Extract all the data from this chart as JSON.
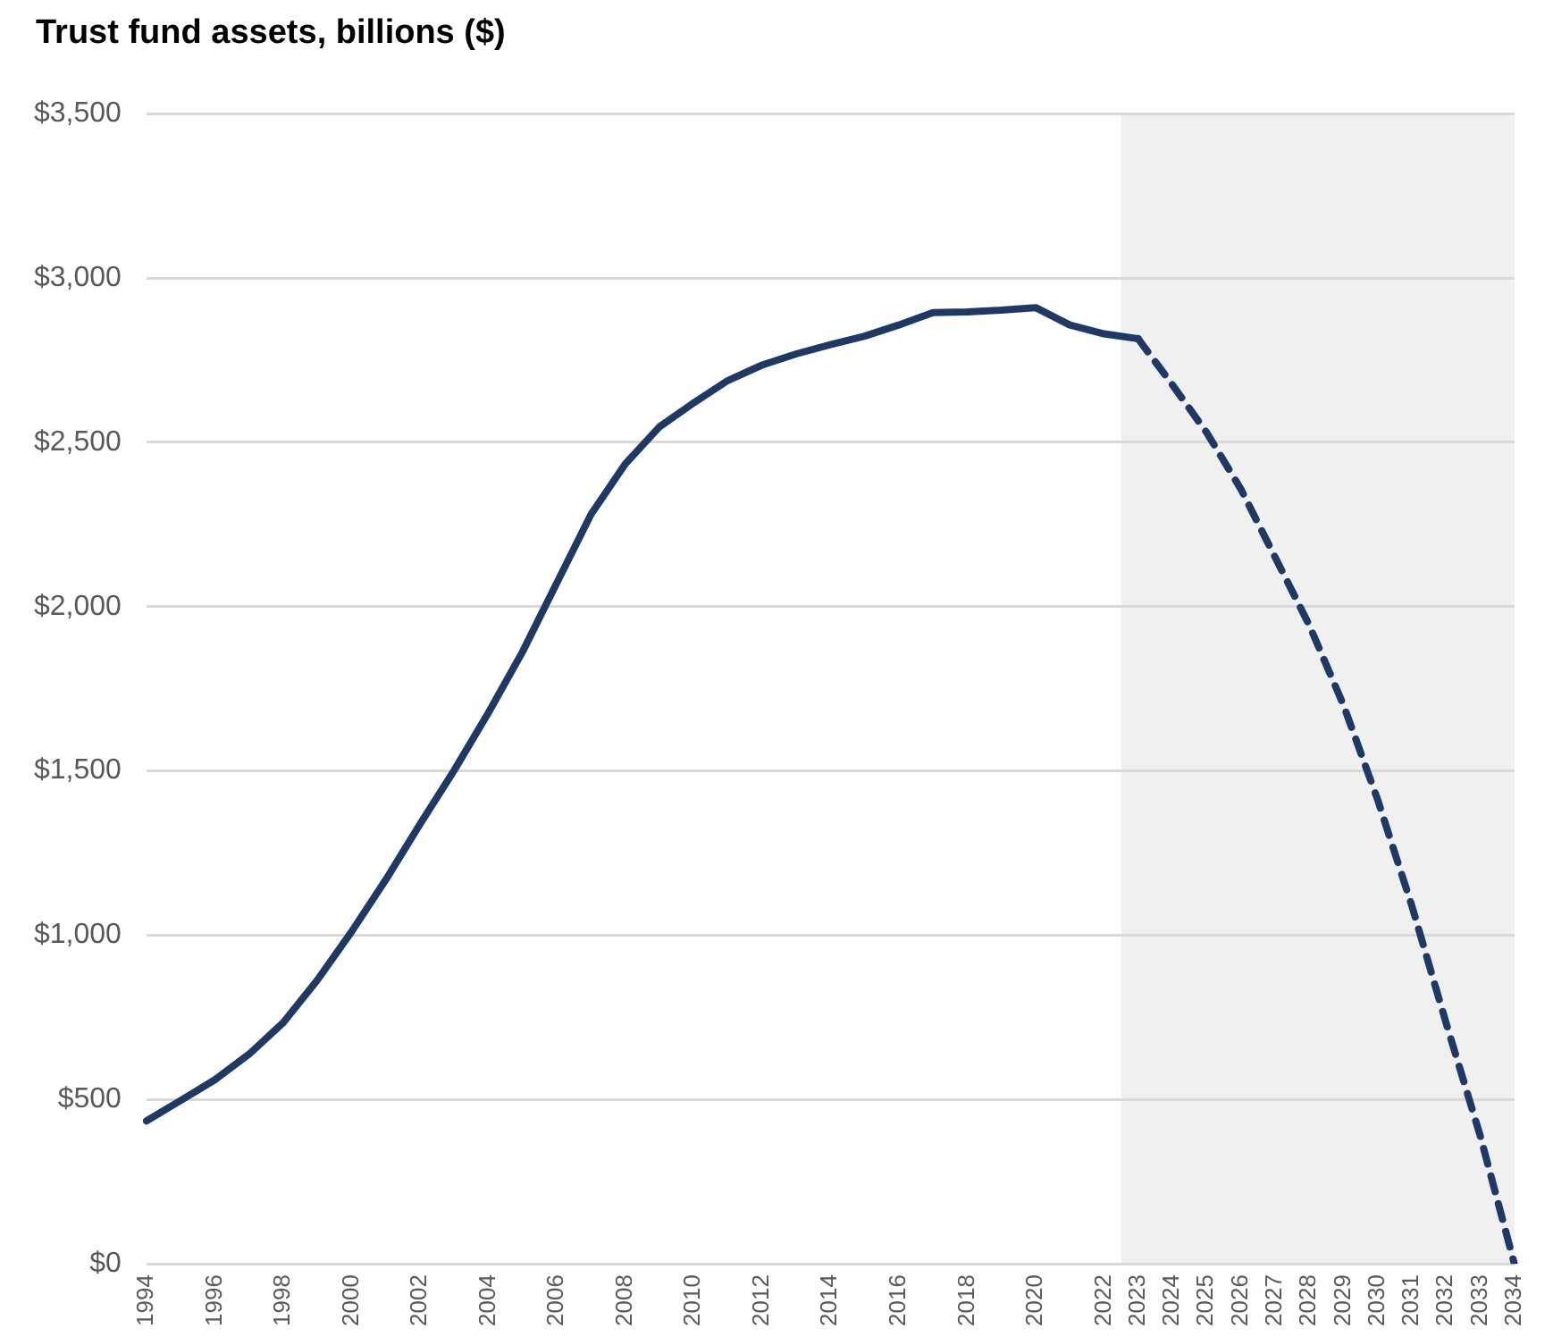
{
  "chart_data": {
    "type": "line",
    "title": "Trust fund assets, billions ($)",
    "categories": [
      "1994",
      null,
      "1996",
      null,
      "1998",
      null,
      "2000",
      null,
      "2002",
      null,
      "2004",
      null,
      "2006",
      null,
      "2008",
      null,
      "2010",
      null,
      "2012",
      null,
      "2014",
      null,
      "2016",
      null,
      "2018",
      null,
      "2020",
      null,
      "2022",
      "2023",
      "2024",
      "2025",
      "2026",
      "2027",
      "2028",
      "2029",
      "2030",
      "2031",
      "2032",
      "2033",
      "2034"
    ],
    "series": [
      {
        "color": "#203864",
        "line_style": "solid",
        "values": [
          435,
          497,
          560,
          638,
          734,
          864,
          1011,
          1169,
          1338,
          1502,
          1677,
          1863,
          2072,
          2281,
          2434,
          2547,
          2620,
          2688,
          2735,
          2769,
          2797,
          2823,
          2857,
          2895,
          2897,
          2902,
          2910,
          2857,
          2830,
          2815,
          null,
          null,
          null,
          null,
          null,
          null,
          null,
          null,
          null,
          null,
          null
        ]
      },
      {
        "color": "#203864",
        "line_style": "dashed",
        "values": [
          null,
          null,
          null,
          null,
          null,
          null,
          null,
          null,
          null,
          null,
          null,
          null,
          null,
          null,
          null,
          null,
          null,
          null,
          null,
          null,
          null,
          null,
          null,
          null,
          null,
          null,
          null,
          null,
          null,
          2815,
          2675,
          2530,
          2358,
          2151,
          1944,
          1701,
          1413,
          1090,
          734,
          390,
          0
        ]
      }
    ],
    "ylim": [
      0,
      3500
    ],
    "yticks": [
      {
        "value": 0,
        "label": "$0"
      },
      {
        "value": 500,
        "label": "$500"
      },
      {
        "value": 1000,
        "label": "$1,000"
      },
      {
        "value": 1500,
        "label": "$1,500"
      },
      {
        "value": 2000,
        "label": "$2,000"
      },
      {
        "value": 2500,
        "label": "$2,500"
      },
      {
        "value": 3000,
        "label": "$3,000"
      },
      {
        "value": 3500,
        "label": "$3,500"
      }
    ],
    "bands": [
      {
        "axis": "x",
        "from": "2023",
        "to": "2034",
        "color": "#f0f0f0"
      }
    ],
    "grid": "y",
    "legend": false,
    "marker": "none"
  }
}
